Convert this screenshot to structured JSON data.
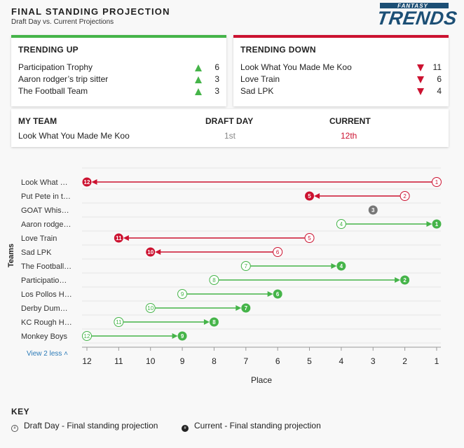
{
  "header": {
    "title": "FINAL STANDING PROJECTION",
    "subtitle": "Draft Day vs. Current Projections",
    "logo_small": "FANTASY",
    "logo_big": "TRENDS"
  },
  "trending_up": {
    "heading": "TRENDING UP",
    "items": [
      {
        "name": "Participation Trophy",
        "value": "6"
      },
      {
        "name": "Aaron rodger’s trip sitter",
        "value": "3"
      },
      {
        "name": "The Football Team",
        "value": "3"
      }
    ]
  },
  "trending_down": {
    "heading": "TRENDING DOWN",
    "items": [
      {
        "name": "Look What You Made Me Koo",
        "value": "11"
      },
      {
        "name": "Love Train",
        "value": "6"
      },
      {
        "name": "Sad LPK",
        "value": "4"
      }
    ]
  },
  "my_team": {
    "col_team": "MY TEAM",
    "col_draft": "DRAFT DAY",
    "col_current": "CURRENT",
    "team_name": "Look What You Made Me Koo",
    "draft_day": "1st",
    "current": "12th"
  },
  "colors": {
    "up": "#45b449",
    "down": "#cc1230",
    "neutral": "#777777"
  },
  "chart_data": {
    "type": "scatter",
    "xlabel": "Place",
    "ylabel": "Teams",
    "xlim": [
      12,
      1
    ],
    "x_ticks": [
      "12",
      "11",
      "10",
      "9",
      "8",
      "7",
      "6",
      "5",
      "4",
      "3",
      "2",
      "1"
    ],
    "rows": [
      {
        "team": "Look What …",
        "draft": 1,
        "current": 12
      },
      {
        "team": "Put Pete in t…",
        "draft": 2,
        "current": 5
      },
      {
        "team": "GOAT Whis…",
        "draft": 3,
        "current": 3
      },
      {
        "team": "Aaron rodge…",
        "draft": 4,
        "current": 1
      },
      {
        "team": "Love Train",
        "draft": 5,
        "current": 11
      },
      {
        "team": "Sad LPK",
        "draft": 6,
        "current": 10
      },
      {
        "team": "The Football…",
        "draft": 7,
        "current": 4
      },
      {
        "team": "Participatio…",
        "draft": 8,
        "current": 2
      },
      {
        "team": "Los Pollos H…",
        "draft": 9,
        "current": 6
      },
      {
        "team": "Derby Dum…",
        "draft": 10,
        "current": 7
      },
      {
        "team": "KC Rough H…",
        "draft": 11,
        "current": 8
      },
      {
        "team": "Monkey Boys",
        "draft": 12,
        "current": 9
      }
    ],
    "view_less": "View 2 less"
  },
  "key": {
    "title": "KEY",
    "draft_label": "Draft Day - Final standing projection",
    "current_label": "Current - Final standing projection",
    "symbol": "#"
  }
}
